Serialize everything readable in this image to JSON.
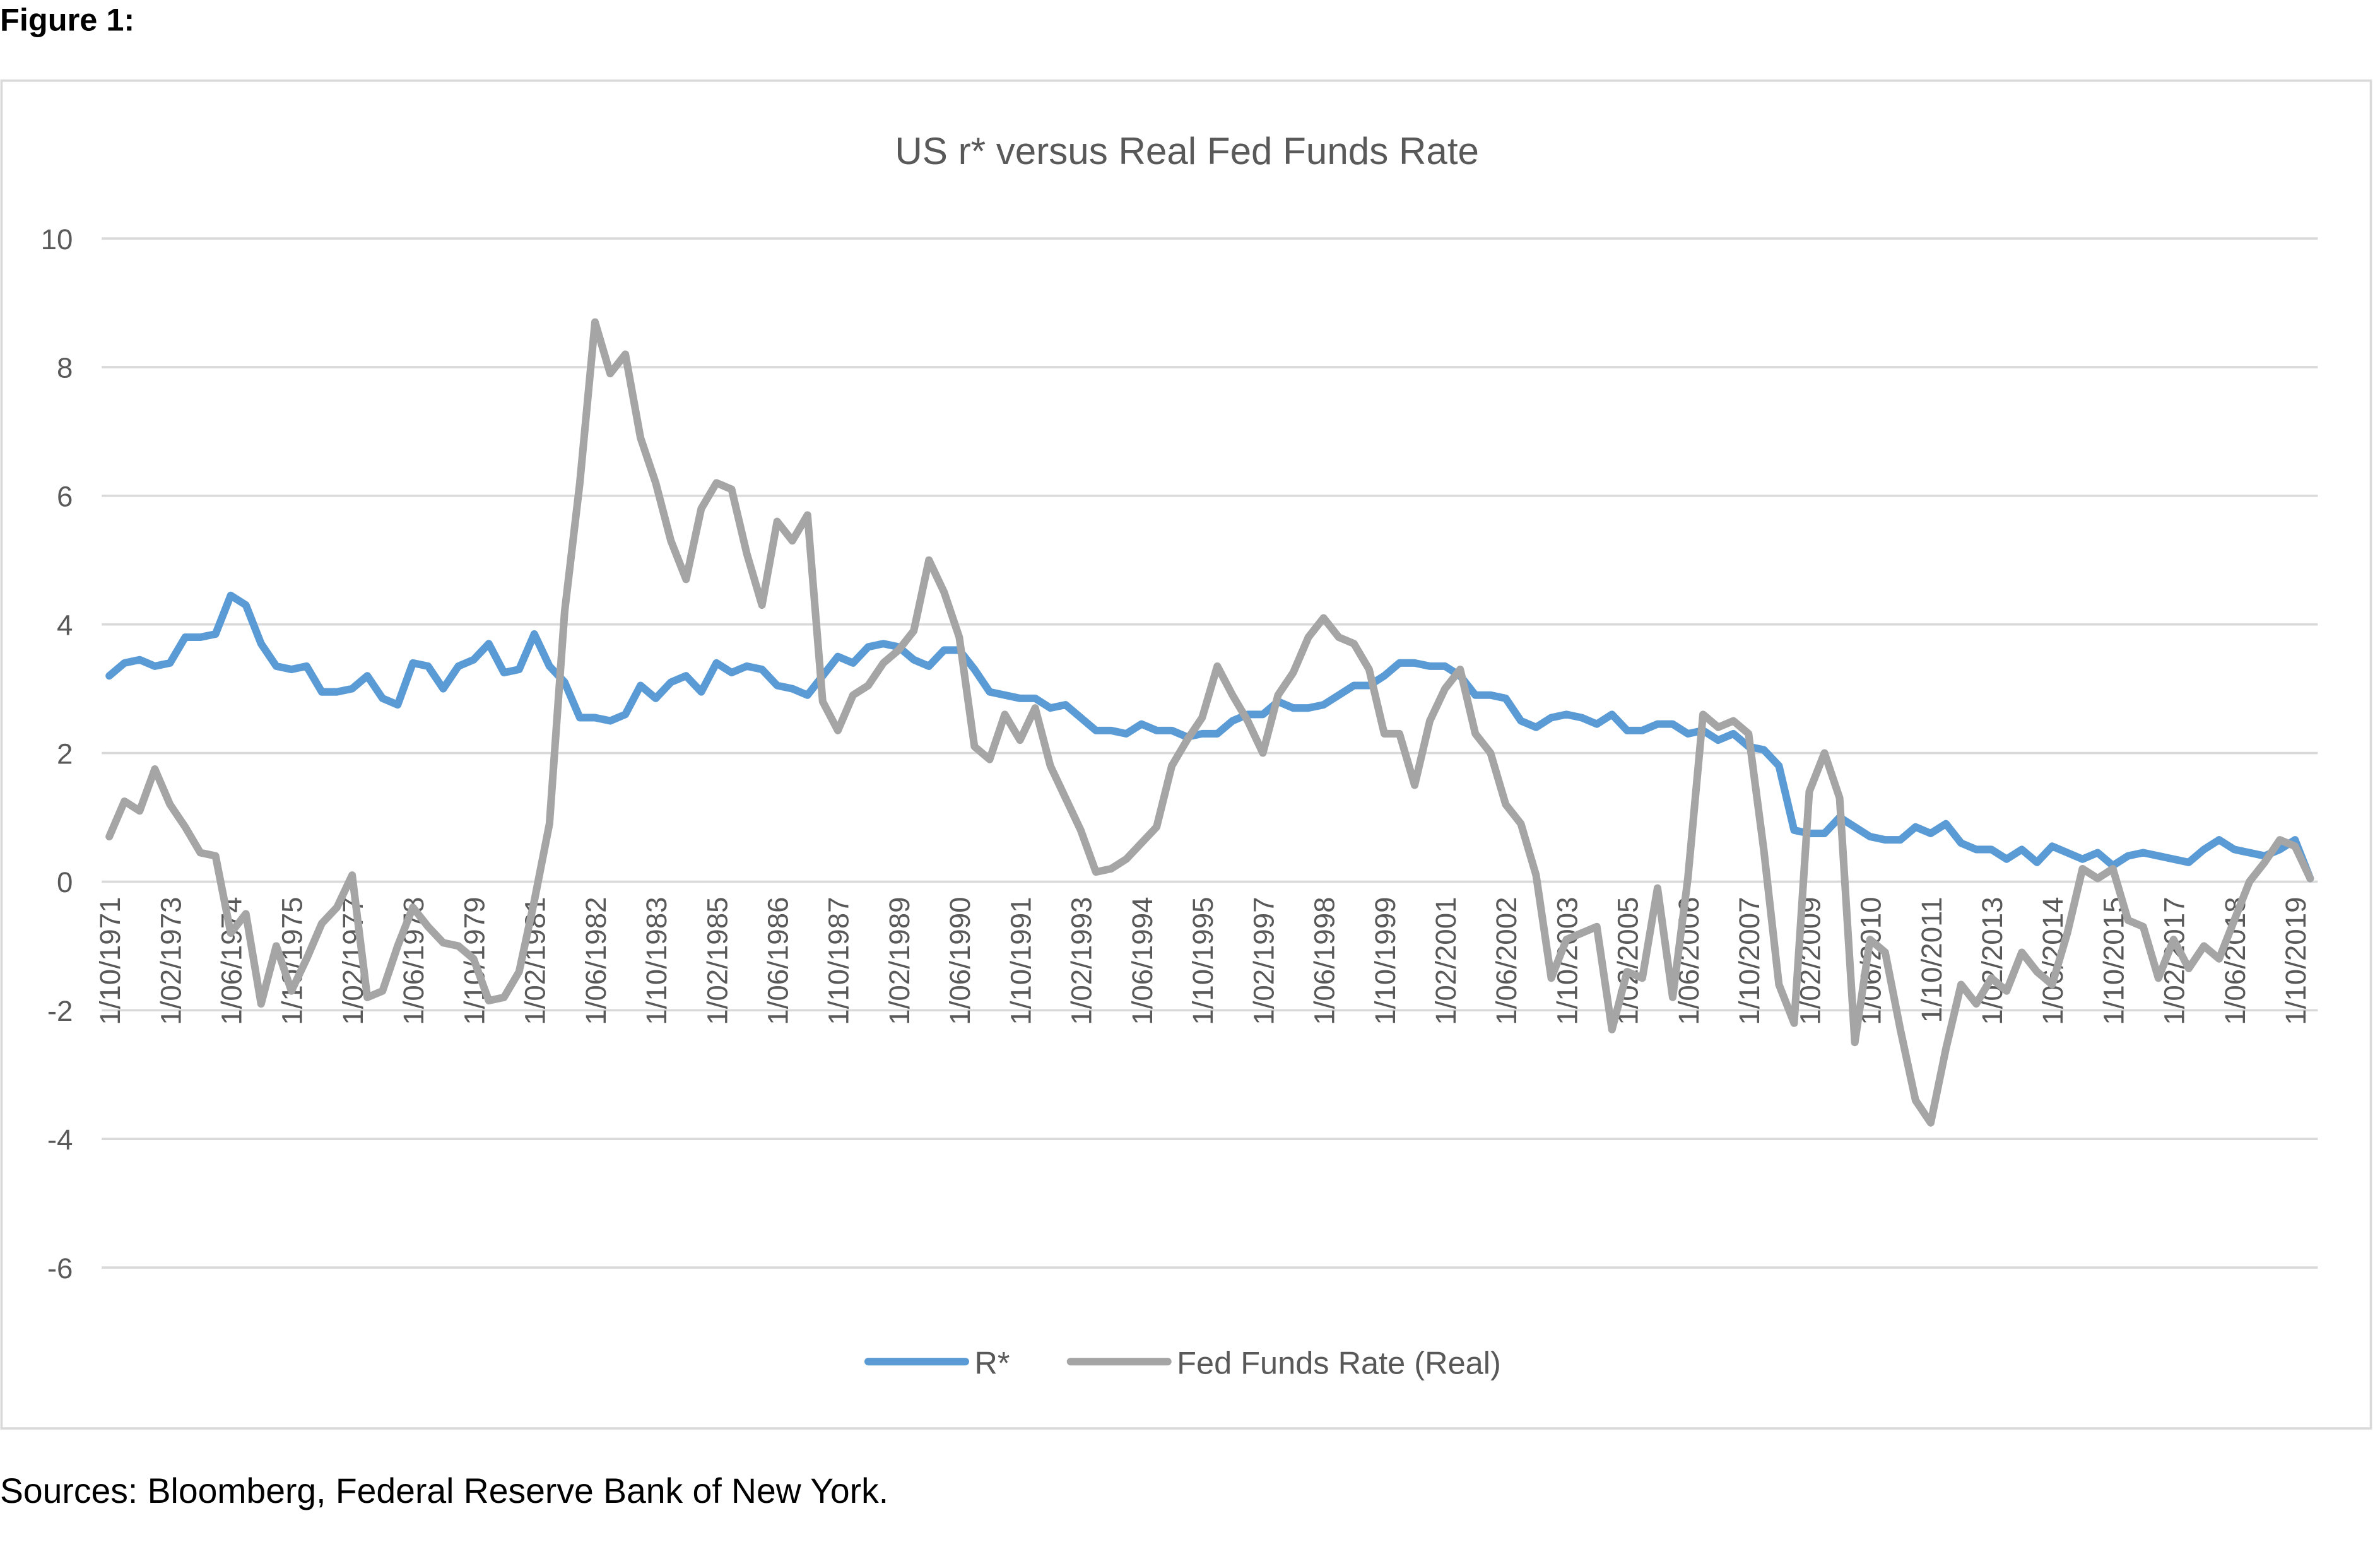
{
  "figure_label": "Figure 1:",
  "source": "Sources: Bloomberg, Federal Reserve Bank of New York.",
  "chart_data": {
    "type": "line",
    "title": "US r* versus Real Fed Funds Rate",
    "categories": [
      "1/10/1971",
      null,
      null,
      null,
      "1/02/1973",
      null,
      null,
      null,
      "1/06/1974",
      null,
      null,
      null,
      "1/10/1975",
      null,
      null,
      null,
      "1/02/1977",
      null,
      null,
      null,
      "1/06/1978",
      null,
      null,
      null,
      "1/10/1979",
      null,
      null,
      null,
      "1/02/1981",
      null,
      null,
      null,
      "1/06/1982",
      null,
      null,
      null,
      "1/10/1983",
      null,
      null,
      null,
      "1/02/1985",
      null,
      null,
      null,
      "1/06/1986",
      null,
      null,
      null,
      "1/10/1987",
      null,
      null,
      null,
      "1/02/1989",
      null,
      null,
      null,
      "1/06/1990",
      null,
      null,
      null,
      "1/10/1991",
      null,
      null,
      null,
      "1/02/1993",
      null,
      null,
      null,
      "1/06/1994",
      null,
      null,
      null,
      "1/10/1995",
      null,
      null,
      null,
      "1/02/1997",
      null,
      null,
      null,
      "1/06/1998",
      null,
      null,
      null,
      "1/10/1999",
      null,
      null,
      null,
      "1/02/2001",
      null,
      null,
      null,
      "1/06/2002",
      null,
      null,
      null,
      "1/10/2003",
      null,
      null,
      null,
      "1/02/2005",
      null,
      null,
      null,
      "1/06/2006",
      null,
      null,
      null,
      "1/10/2007",
      null,
      null,
      null,
      "1/02/2009",
      null,
      null,
      null,
      "1/06/2010",
      null,
      null,
      null,
      "1/10/2011",
      null,
      null,
      null,
      "1/02/2013",
      null,
      null,
      null,
      "1/06/2014",
      null,
      null,
      null,
      "1/10/2015",
      null,
      null,
      null,
      "1/02/2017",
      null,
      null,
      null,
      "1/06/2018",
      null,
      null,
      null,
      "1/10/2019",
      null
    ],
    "series": [
      {
        "name": "R*",
        "color": "#5b9bd5",
        "values": [
          3.2,
          3.4,
          3.45,
          3.35,
          3.4,
          3.8,
          3.8,
          3.85,
          4.45,
          4.3,
          3.7,
          3.35,
          3.3,
          3.35,
          2.95,
          2.95,
          3.0,
          3.2,
          2.85,
          2.75,
          3.4,
          3.35,
          3.0,
          3.35,
          3.45,
          3.7,
          3.25,
          3.3,
          3.85,
          3.35,
          3.1,
          2.55,
          2.55,
          2.5,
          2.6,
          3.05,
          2.85,
          3.1,
          3.2,
          2.95,
          3.4,
          3.25,
          3.35,
          3.3,
          3.05,
          3.0,
          2.9,
          3.2,
          3.5,
          3.4,
          3.65,
          3.7,
          3.65,
          3.45,
          3.35,
          3.6,
          3.6,
          3.3,
          2.95,
          2.9,
          2.85,
          2.85,
          2.7,
          2.75,
          2.55,
          2.35,
          2.35,
          2.3,
          2.45,
          2.35,
          2.35,
          2.25,
          2.3,
          2.3,
          2.5,
          2.6,
          2.6,
          2.8,
          2.7,
          2.7,
          2.75,
          2.9,
          3.05,
          3.05,
          3.2,
          3.4,
          3.4,
          3.35,
          3.35,
          3.2,
          2.9,
          2.9,
          2.85,
          2.5,
          2.4,
          2.55,
          2.6,
          2.55,
          2.45,
          2.6,
          2.35,
          2.35,
          2.45,
          2.45,
          2.3,
          2.35,
          2.2,
          2.3,
          2.1,
          2.05,
          1.8,
          0.8,
          0.75,
          0.75,
          1.0,
          0.85,
          0.7,
          0.65,
          0.65,
          0.85,
          0.75,
          0.9,
          0.6,
          0.5,
          0.5,
          0.35,
          0.5,
          0.3,
          0.55,
          0.45,
          0.35,
          0.45,
          0.25,
          0.4,
          0.45,
          0.4,
          0.35,
          0.3,
          0.5,
          0.65,
          0.5,
          0.45,
          0.4,
          0.5,
          0.65,
          0.05
        ]
      },
      {
        "name": "Fed Funds Rate (Real)",
        "color": "#a5a5a5",
        "values": [
          0.7,
          1.25,
          1.1,
          1.75,
          1.2,
          0.85,
          0.45,
          0.4,
          -0.8,
          -0.5,
          -1.9,
          -1.0,
          -1.7,
          -1.2,
          -0.65,
          -0.4,
          0.1,
          -1.8,
          -1.7,
          -1.0,
          -0.4,
          -0.7,
          -0.95,
          -1.0,
          -1.2,
          -1.85,
          -1.8,
          -1.4,
          -0.3,
          0.9,
          4.2,
          6.2,
          8.7,
          7.9,
          8.2,
          6.9,
          6.2,
          5.3,
          4.7,
          5.8,
          6.2,
          6.1,
          5.1,
          4.3,
          5.6,
          5.3,
          5.7,
          2.8,
          2.35,
          2.9,
          3.05,
          3.4,
          3.6,
          3.9,
          5.0,
          4.5,
          3.8,
          2.1,
          1.9,
          2.6,
          2.2,
          2.7,
          1.8,
          1.3,
          0.8,
          0.15,
          0.2,
          0.35,
          0.6,
          0.85,
          1.8,
          2.2,
          2.55,
          3.35,
          2.9,
          2.5,
          2.0,
          2.9,
          3.25,
          3.8,
          4.1,
          3.8,
          3.7,
          3.3,
          2.3,
          2.3,
          1.5,
          2.5,
          3.0,
          3.3,
          2.3,
          2.0,
          1.2,
          0.9,
          0.1,
          -1.5,
          -0.9,
          -0.8,
          -0.7,
          -2.3,
          -1.4,
          -1.5,
          -0.1,
          -1.8,
          0.05,
          2.6,
          2.4,
          2.5,
          2.3,
          0.5,
          -1.6,
          -2.2,
          1.4,
          2.0,
          1.3,
          -2.5,
          -0.9,
          -1.1,
          -2.3,
          -3.4,
          -3.75,
          -2.6,
          -1.6,
          -1.9,
          -1.5,
          -1.7,
          -1.1,
          -1.4,
          -1.6,
          -0.8,
          0.2,
          0.05,
          0.2,
          -0.6,
          -0.7,
          -1.5,
          -0.9,
          -1.35,
          -1.0,
          -1.2,
          -0.6,
          0.0,
          0.3,
          0.65,
          0.55,
          0.05
        ]
      }
    ],
    "ylim": [
      -6,
      10
    ],
    "yticks": [
      -6,
      -4,
      -2,
      0,
      2,
      4,
      6,
      8,
      10
    ],
    "grid": true,
    "legend": "bottom"
  }
}
